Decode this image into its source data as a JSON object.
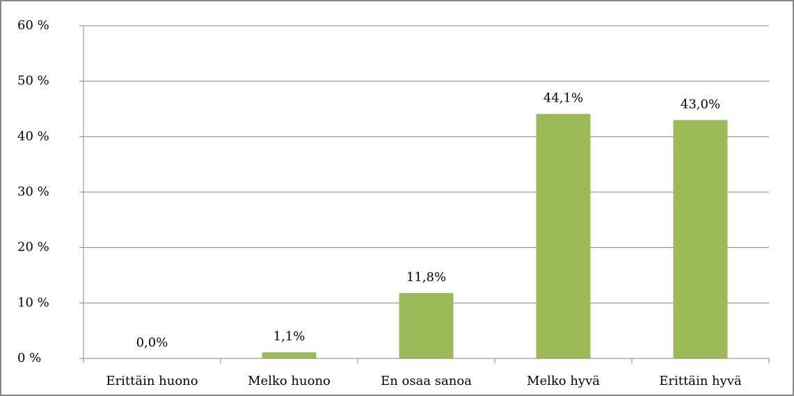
{
  "chart_data": {
    "type": "bar",
    "categories": [
      "Erittäin huono",
      "Melko huono",
      "En osaa sanoa",
      "Melko hyvä",
      "Erittäin hyvä"
    ],
    "values": [
      0.0,
      1.1,
      11.8,
      44.1,
      43.0
    ],
    "value_labels": [
      "0,0%",
      "1,1%",
      "11,8%",
      "44,1%",
      "43,0%"
    ],
    "color": "#9bbb59",
    "ylim": [
      0,
      60
    ],
    "yticks": [
      {
        "value": 0,
        "label": "0 %"
      },
      {
        "value": 10,
        "label": "10 %"
      },
      {
        "value": 20,
        "label": "20 %"
      },
      {
        "value": 30,
        "label": "30 %"
      },
      {
        "value": 40,
        "label": "40 %"
      },
      {
        "value": 50,
        "label": "50 %"
      },
      {
        "value": 60,
        "label": "60 %"
      }
    ],
    "grid": true
  }
}
